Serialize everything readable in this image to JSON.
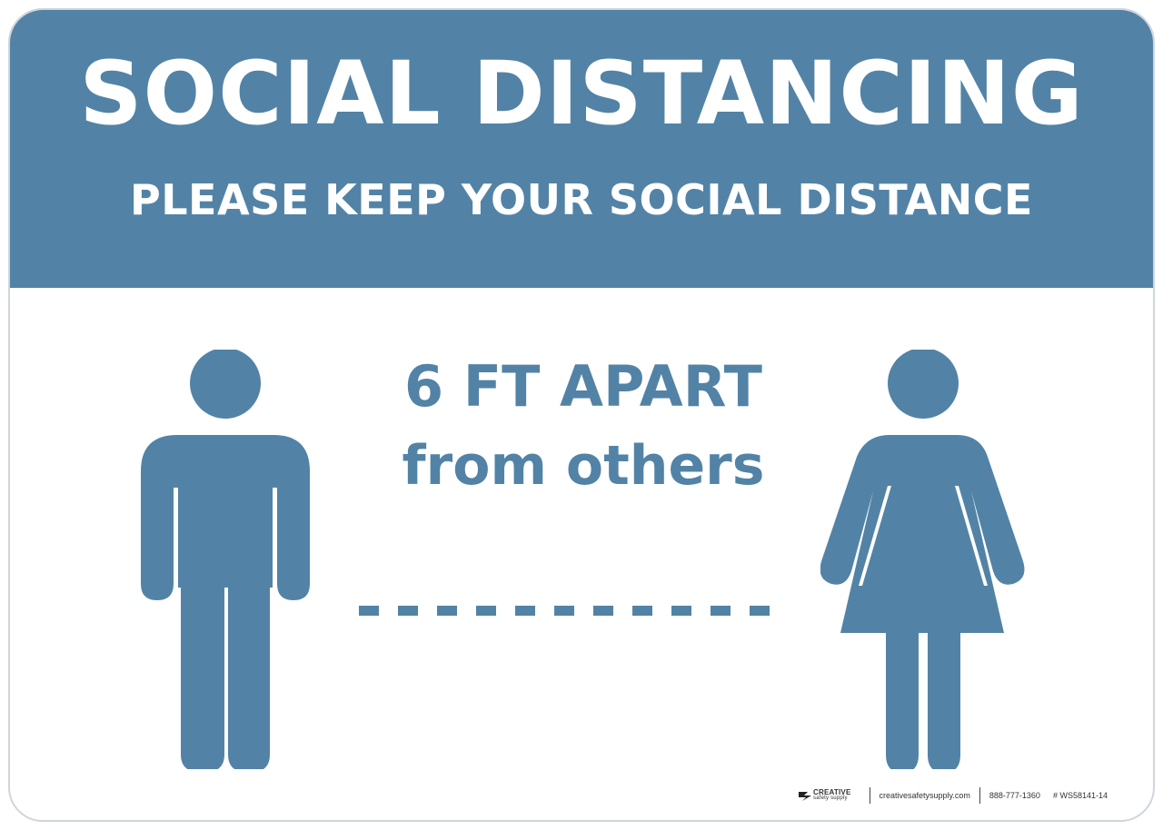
{
  "colors": {
    "brand": "#5283a6",
    "text_on_brand": "#ffffff",
    "background": "#ffffff"
  },
  "header": {
    "title": "SOCIAL DISTANCING",
    "subtitle": "PLEASE KEEP YOUR SOCIAL DISTANCE"
  },
  "body": {
    "line1": "6 FT APART",
    "line2": "from others",
    "icons": [
      "man-icon",
      "woman-icon",
      "dashed-line-icon"
    ]
  },
  "footer": {
    "brand_name": "CREATIVE",
    "brand_sub": "safety supply",
    "website": "creativesafetysupply.com",
    "phone": "888-777-1360",
    "product_code": "# WS58141-14"
  }
}
